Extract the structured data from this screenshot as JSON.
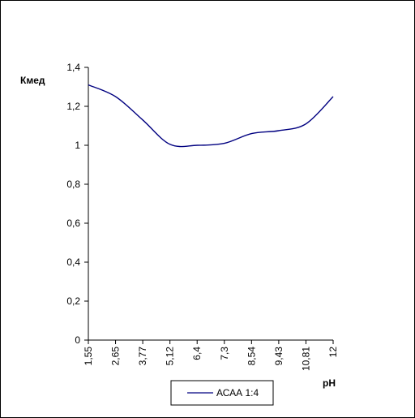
{
  "chart_data": {
    "type": "line",
    "ylabel": "Кмед",
    "xlabel": "pH",
    "x": [
      "1,55",
      "2,65",
      "3,77",
      "5,12",
      "6,4",
      "7,3",
      "8,54",
      "9,43",
      "10,81",
      "12"
    ],
    "series": [
      {
        "name": "АСАА 1:4",
        "values": [
          1.31,
          1.25,
          1.13,
          1.005,
          1.0,
          1.01,
          1.06,
          1.075,
          1.11,
          1.25
        ]
      }
    ],
    "ylim": [
      0,
      1.4
    ],
    "yticks": [
      {
        "value": 0,
        "label": "0"
      },
      {
        "value": 0.2,
        "label": "0,2"
      },
      {
        "value": 0.4,
        "label": "0,4"
      },
      {
        "value": 0.6,
        "label": "0,6"
      },
      {
        "value": 0.8,
        "label": "0,8"
      },
      {
        "value": 1.0,
        "label": "1"
      },
      {
        "value": 1.2,
        "label": "1,2"
      },
      {
        "value": 1.4,
        "label": "1,4"
      }
    ],
    "grid": false,
    "legend": "bottom-center",
    "colors": {
      "series": "#000080",
      "axis": "#000000"
    }
  }
}
